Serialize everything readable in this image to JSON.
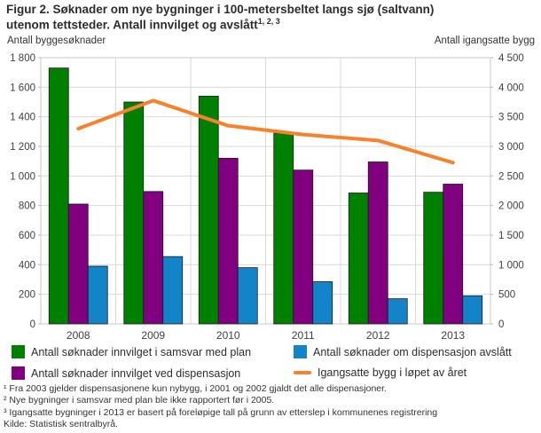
{
  "title": {
    "line1": "Figur 2. Søknader om nye bygninger i 100-metersbeltet langs sjø (saltvann)",
    "line2": "utenom tettsteder. Antall innvilget og avslått",
    "superscript": "1, 2, 3"
  },
  "chart_data": {
    "type": "bar+line",
    "categories": [
      "2008",
      "2009",
      "2010",
      "2011",
      "2012",
      "2013"
    ],
    "bar_series": [
      {
        "key": "innvilget-i-samsvar-med-plan",
        "name": "Antall søknader innvilget i samsvar med plan",
        "color": "#008000",
        "axis": "left",
        "values": [
          1730,
          1500,
          1540,
          1290,
          885,
          890
        ]
      },
      {
        "key": "innvilget-ved-dispensasjon",
        "name": "Antall søknader innvilget ved dispensasjon",
        "color": "#800080",
        "axis": "left",
        "values": [
          810,
          895,
          1120,
          1040,
          1095,
          945
        ]
      },
      {
        "key": "dispensasjon-avslaatt",
        "name": "Antall søknader om dispensasjon avslått",
        "color": "#1484c8",
        "axis": "left",
        "values": [
          390,
          455,
          380,
          285,
          170,
          190
        ]
      }
    ],
    "line_series": {
      "key": "igangsatte-bygg",
      "name": "Igangsatte bygg i løpet av året",
      "color": "#f8812a",
      "axis": "right",
      "values": [
        3300,
        3775,
        3350,
        3200,
        3100,
        2725
      ]
    },
    "left_axis": {
      "title": "Antall byggesøknader",
      "min": 0,
      "max": 1800,
      "ticks": [
        "1 800",
        "1 600",
        "1 400",
        "1 200",
        "1 000",
        "800",
        "600",
        "400",
        "200",
        "0"
      ]
    },
    "right_axis": {
      "title": "Antall igangsatte bygg",
      "min": 0,
      "max": 4500,
      "ticks": [
        "4 500",
        "4 000",
        "3 500",
        "3 000",
        "2 500",
        "2 000",
        "1 500",
        "1 000",
        "500",
        "0"
      ]
    },
    "grid": true,
    "legend_position": "bottom"
  },
  "colors": {
    "grid": "#d9d9d9",
    "plot_border": "#c9c9c9",
    "tick": "#b3b3b3",
    "tick_text": "#404040",
    "bar_outline": "#1a1a1a"
  },
  "footnotes": [
    "¹ Fra 2003 gjelder dispensasjonene kun nybygg, i 2001 og 2002 gjaldt det alle dispenasjoner.",
    "² Nye bygninger i samsvar med plan ble ikke rapportert før i 2005.",
    "³ Igangsatte bygninger i 2013 er basert på foreløpige tall på grunn av etterslep i kommunenes registrering"
  ],
  "source": "Kilde: Statistisk sentralbyrå."
}
